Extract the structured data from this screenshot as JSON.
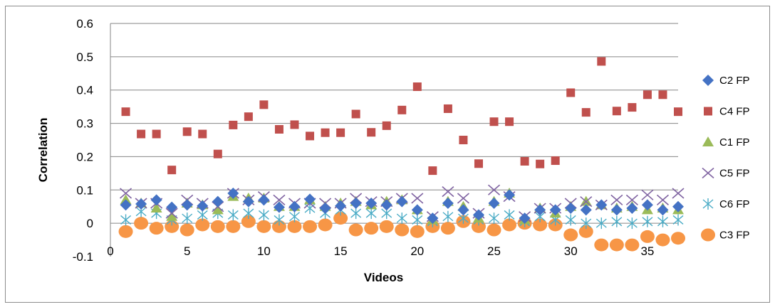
{
  "chart_data": {
    "type": "scatter",
    "title": "",
    "xlabel": "Videos",
    "ylabel": "Correlation",
    "xlim": [
      0,
      37
    ],
    "ylim": [
      -0.1,
      0.6
    ],
    "x_ticks": [
      "0",
      "5",
      "10",
      "15",
      "20",
      "25",
      "30",
      "35"
    ],
    "y_ticks": [
      "-0.1",
      "0",
      "0.1",
      "0.2",
      "0.3",
      "0.4",
      "0.5",
      "0.6"
    ],
    "grid": "horizontal major gridlines",
    "legend_position": "right",
    "x": [
      1,
      2,
      3,
      4,
      5,
      6,
      7,
      8,
      9,
      10,
      11,
      12,
      13,
      14,
      15,
      16,
      17,
      18,
      19,
      20,
      21,
      22,
      23,
      24,
      25,
      26,
      27,
      28,
      29,
      30,
      31,
      32,
      33,
      34,
      35,
      36,
      37
    ],
    "series": [
      {
        "name": "C2 FP",
        "marker": "diamond",
        "color": "#4472c4",
        "values": [
          0.055,
          0.058,
          0.07,
          0.048,
          0.055,
          0.052,
          0.065,
          0.09,
          0.065,
          0.07,
          0.048,
          0.05,
          0.072,
          0.045,
          0.052,
          0.06,
          0.06,
          0.055,
          0.065,
          0.04,
          0.015,
          0.06,
          0.04,
          0.025,
          0.06,
          0.085,
          0.015,
          0.04,
          0.04,
          0.045,
          0.04,
          0.055,
          0.04,
          0.045,
          0.055,
          0.04,
          0.05
        ]
      },
      {
        "name": "C4 FP",
        "marker": "square",
        "color": "#c0504d",
        "values": [
          0.335,
          0.268,
          0.268,
          0.16,
          0.275,
          0.268,
          0.208,
          0.295,
          0.32,
          0.356,
          0.282,
          0.296,
          0.262,
          0.272,
          0.272,
          0.328,
          0.273,
          0.293,
          0.34,
          0.41,
          0.158,
          0.344,
          0.25,
          0.179,
          0.305,
          0.305,
          0.186,
          0.178,
          0.188,
          0.392,
          0.333,
          0.486,
          0.337,
          0.348,
          0.386,
          0.386,
          0.335
        ]
      },
      {
        "name": "C1 FP",
        "marker": "triangle",
        "color": "#9bbb59",
        "values": [
          0.07,
          0.06,
          0.045,
          0.02,
          0.06,
          0.055,
          0.04,
          0.08,
          0.075,
          0.075,
          0.05,
          0.05,
          0.07,
          0.05,
          0.06,
          0.065,
          0.055,
          0.065,
          0.07,
          0.04,
          0.01,
          0.065,
          0.05,
          0.015,
          0.065,
          0.09,
          0.01,
          0.045,
          0.03,
          0.05,
          0.065,
          0.055,
          0.045,
          0.05,
          0.04,
          0.045,
          0.04
        ]
      },
      {
        "name": "C5 FP",
        "marker": "x",
        "color": "#8064a2",
        "values": [
          0.09,
          0.06,
          0.06,
          0.03,
          0.07,
          0.06,
          0.05,
          0.09,
          0.07,
          0.08,
          0.07,
          0.06,
          0.06,
          0.06,
          0.06,
          0.075,
          0.065,
          0.065,
          0.075,
          0.075,
          0.02,
          0.095,
          0.075,
          0.03,
          0.1,
          0.08,
          0.02,
          0.045,
          0.045,
          0.06,
          0.065,
          0.055,
          0.07,
          0.07,
          0.085,
          0.07,
          0.09
        ]
      },
      {
        "name": "C6 FP",
        "marker": "asterisk",
        "color": "#4bacc6",
        "values": [
          0.01,
          0.035,
          0.03,
          0.01,
          0.015,
          0.025,
          0.03,
          0.025,
          0.03,
          0.025,
          0.01,
          0.02,
          0.045,
          0.03,
          0.04,
          0.03,
          0.03,
          0.03,
          0.015,
          0.01,
          0.005,
          0.02,
          0.015,
          0.01,
          0.015,
          0.025,
          0.005,
          0.02,
          0.01,
          0.01,
          0.0,
          0.0,
          0.005,
          0.0,
          0.005,
          0.005,
          0.01
        ]
      },
      {
        "name": "C3 FP",
        "marker": "circle",
        "color": "#f79646",
        "values": [
          -0.025,
          0.0,
          -0.015,
          -0.01,
          -0.02,
          -0.005,
          -0.01,
          -0.01,
          0.005,
          -0.01,
          -0.01,
          -0.01,
          -0.01,
          -0.005,
          0.015,
          -0.02,
          -0.015,
          -0.01,
          -0.02,
          -0.025,
          -0.01,
          -0.015,
          0.005,
          -0.01,
          -0.02,
          -0.005,
          0.0,
          -0.005,
          -0.005,
          -0.035,
          -0.025,
          -0.065,
          -0.065,
          -0.065,
          -0.04,
          -0.05,
          -0.045
        ]
      }
    ]
  }
}
